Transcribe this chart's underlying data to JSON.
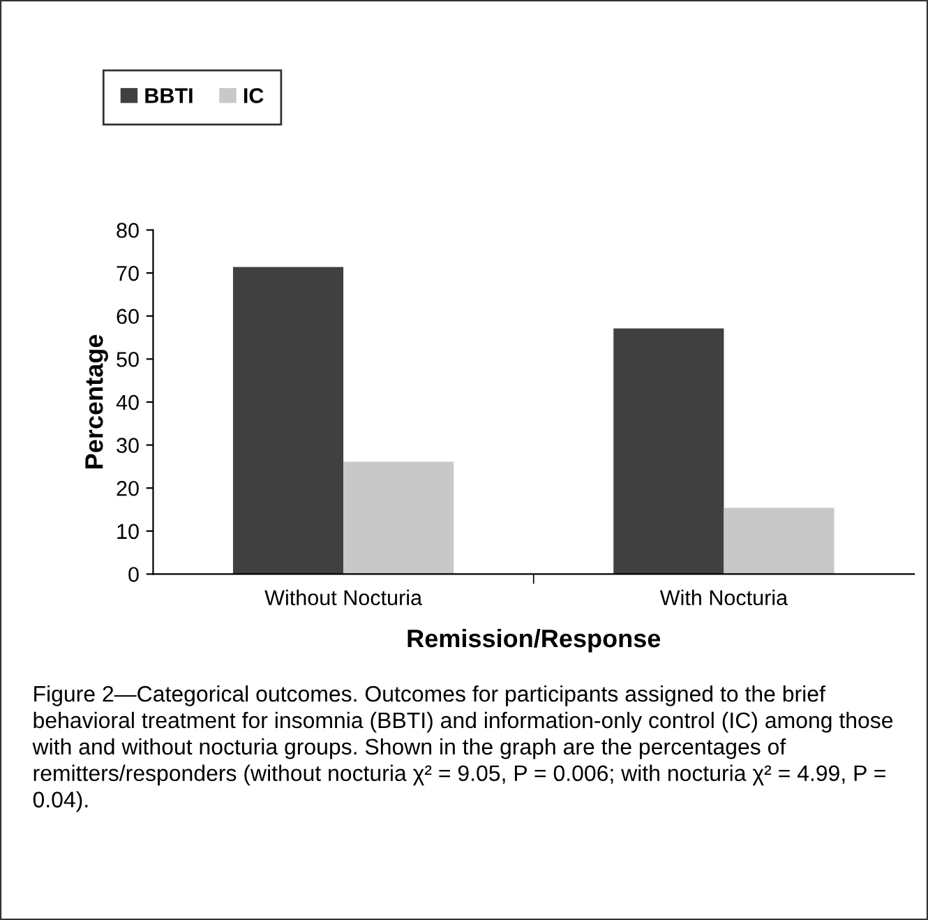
{
  "chart_data": {
    "type": "bar",
    "xlabel": "Remission/Response",
    "ylabel": "Percentage",
    "categories": [
      "Without Nocturia",
      "With Nocturia"
    ],
    "series": [
      {
        "name": "BBTI",
        "color": "#404040",
        "values": [
          71.4,
          57.1
        ]
      },
      {
        "name": "IC",
        "color": "#c8c8c8",
        "values": [
          26.1,
          15.4
        ]
      }
    ],
    "ylim": [
      0,
      80
    ],
    "yticks": [
      0,
      10,
      20,
      30,
      40,
      50,
      60,
      70,
      80
    ],
    "grid": false,
    "legend": "top left",
    "annotations": [
      "Figure 2—Categorical outcomes. Outcomes for participants assigned to the brief behavioral treatment for insomnia (BBTI) and information-only control (IC) among those with and without nocturia groups. Shown in the graph are the percentages of remitters/responders (without nocturia χ² = 9.05, P = 0.006; with nocturia χ² = 4.99, P = 0.04)."
    ]
  }
}
